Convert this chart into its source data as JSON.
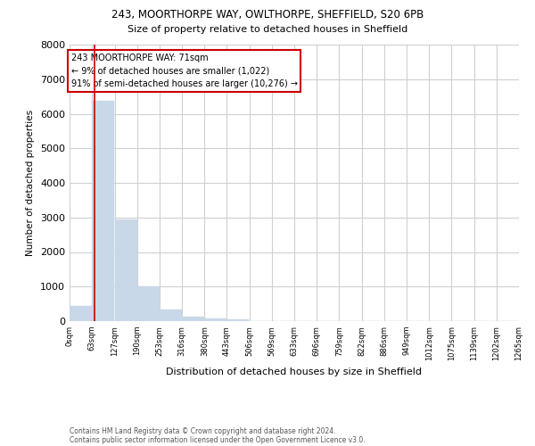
{
  "title1": "243, MOORTHORPE WAY, OWLTHORPE, SHEFFIELD, S20 6PB",
  "title2": "Size of property relative to detached houses in Sheffield",
  "xlabel": "Distribution of detached houses by size in Sheffield",
  "ylabel": "Number of detached properties",
  "footnote1": "Contains HM Land Registry data © Crown copyright and database right 2024.",
  "footnote2": "Contains public sector information licensed under the Open Government Licence v3.0.",
  "annotation_line1": "243 MOORTHORPE WAY: 71sqm",
  "annotation_line2": "← 9% of detached houses are smaller (1,022)",
  "annotation_line3": "91% of semi-detached houses are larger (10,276) →",
  "property_size": 71,
  "bar_color": "#c8d8e8",
  "marker_color": "#cc0000",
  "annotation_box_color": "#cc0000",
  "background_color": "#ffffff",
  "grid_color": "#d0d0d0",
  "bins": [
    0,
    63,
    127,
    190,
    253,
    316,
    380,
    443,
    506,
    569,
    633,
    696,
    759,
    822,
    886,
    949,
    1012,
    1075,
    1139,
    1202,
    1265
  ],
  "bin_labels": [
    "0sqm",
    "63sqm",
    "127sqm",
    "190sqm",
    "253sqm",
    "316sqm",
    "380sqm",
    "443sqm",
    "506sqm",
    "569sqm",
    "633sqm",
    "696sqm",
    "759sqm",
    "822sqm",
    "886sqm",
    "949sqm",
    "1012sqm",
    "1075sqm",
    "1139sqm",
    "1202sqm",
    "1265sqm"
  ],
  "bar_heights": [
    450,
    6380,
    2950,
    1000,
    330,
    130,
    70,
    60,
    0,
    0,
    0,
    0,
    0,
    0,
    0,
    0,
    0,
    0,
    0,
    0
  ],
  "ylim": [
    0,
    8000
  ],
  "yticks": [
    0,
    1000,
    2000,
    3000,
    4000,
    5000,
    6000,
    7000,
    8000
  ]
}
